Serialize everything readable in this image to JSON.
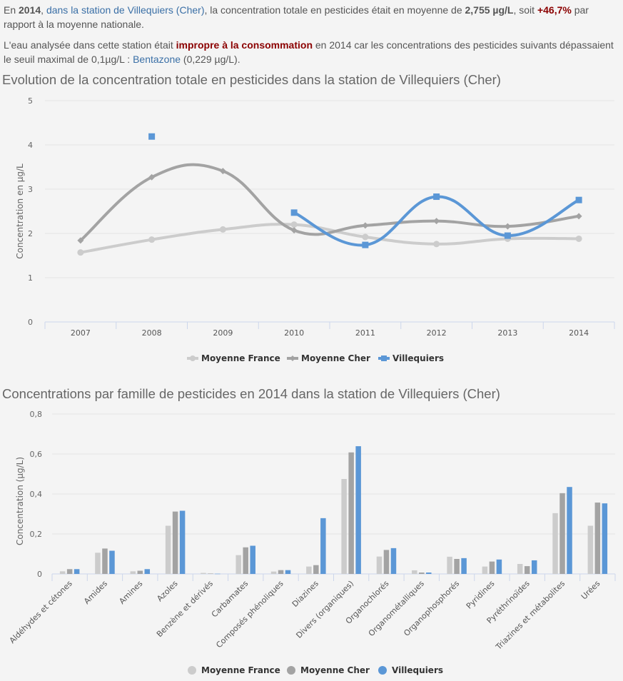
{
  "intro": {
    "p1": {
      "t1": "En ",
      "year": "2014",
      "t2": ", ",
      "station_link": "dans la station de Villequiers (Cher)",
      "t3": ", la concentration totale en pesticides était en moyenne de ",
      "avg": "2,755 µg/L",
      "t4": ", soit ",
      "pct": "+46,7%",
      "t5": " par rapport à la moyenne nationale."
    },
    "p2": {
      "t1": "L'eau analysée dans cette station était ",
      "verdict": "impropre à la consommation",
      "t2": " en 2014 car les concentrations des pesticides suivants dépassaient le seuil maximal de 0,1µg/L : ",
      "pesticide_link": "Bentazone",
      "t3": " (0,229 µg/L)."
    }
  },
  "colors": {
    "france": "#cccccc",
    "cher": "#a3a3a3",
    "villequiers": "#5b97d6"
  },
  "chart_data": [
    {
      "type": "line",
      "title": "Evolution de la concentration totale en pesticides dans la station de Villequiers (Cher)",
      "xlabel": "",
      "ylabel": "Concentration en µg/L",
      "ylim": [
        0,
        5
      ],
      "yticks": [
        "0",
        "1",
        "2",
        "3",
        "4",
        "5"
      ],
      "grid": true,
      "legend": "bottom-center",
      "categories": [
        "2007",
        "2008",
        "2009",
        "2010",
        "2011",
        "2012",
        "2013",
        "2014"
      ],
      "series": [
        {
          "name": "Moyenne France",
          "marker": "circle",
          "values": [
            1.57,
            1.86,
            2.09,
            2.2,
            1.92,
            1.76,
            1.88,
            1.88
          ]
        },
        {
          "name": "Moyenne Cher",
          "marker": "diamond",
          "values": [
            1.84,
            3.27,
            3.41,
            2.07,
            2.18,
            2.28,
            2.16,
            2.39
          ]
        },
        {
          "name": "Villequiers",
          "marker": "square",
          "values": [
            null,
            4.19,
            null,
            2.47,
            1.74,
            2.83,
            1.95,
            2.755
          ]
        }
      ]
    },
    {
      "type": "bar",
      "title": "Concentrations par famille de pesticides en 2014 dans la station de Villequiers (Cher)",
      "xlabel": "",
      "ylabel": "Concentration (µg/L)",
      "ylim": [
        0,
        0.8
      ],
      "yticks": [
        "0",
        "0,2",
        "0,4",
        "0,6",
        "0,8"
      ],
      "grid": true,
      "legend": "bottom-center",
      "categories": [
        "Aldéhydes et cétones",
        "Amides",
        "Amines",
        "Azoles",
        "Benzène et dérivés",
        "Carbamates",
        "Composés phénoliques",
        "Diazines",
        "Divers (organiques)",
        "Organochlorés",
        "Organométalliques",
        "Organophosphorés",
        "Pyridines",
        "Pyréthrinoïdes",
        "Triazines et métabolites",
        "Urées"
      ],
      "series": [
        {
          "name": "Moyenne France",
          "values": [
            0.013,
            0.106,
            0.013,
            0.241,
            0.005,
            0.094,
            0.012,
            0.037,
            0.475,
            0.087,
            0.018,
            0.086,
            0.037,
            0.05,
            0.304,
            0.241
          ]
        },
        {
          "name": "Moyenne Cher",
          "values": [
            0.024,
            0.127,
            0.016,
            0.312,
            0.002,
            0.133,
            0.019,
            0.044,
            0.608,
            0.12,
            0.007,
            0.075,
            0.062,
            0.039,
            0.404,
            0.357
          ]
        },
        {
          "name": "Villequiers",
          "values": [
            0.024,
            0.116,
            0.024,
            0.316,
            0.001,
            0.141,
            0.019,
            0.279,
            0.639,
            0.129,
            0.007,
            0.079,
            0.072,
            0.068,
            0.435,
            0.353
          ]
        }
      ]
    }
  ]
}
